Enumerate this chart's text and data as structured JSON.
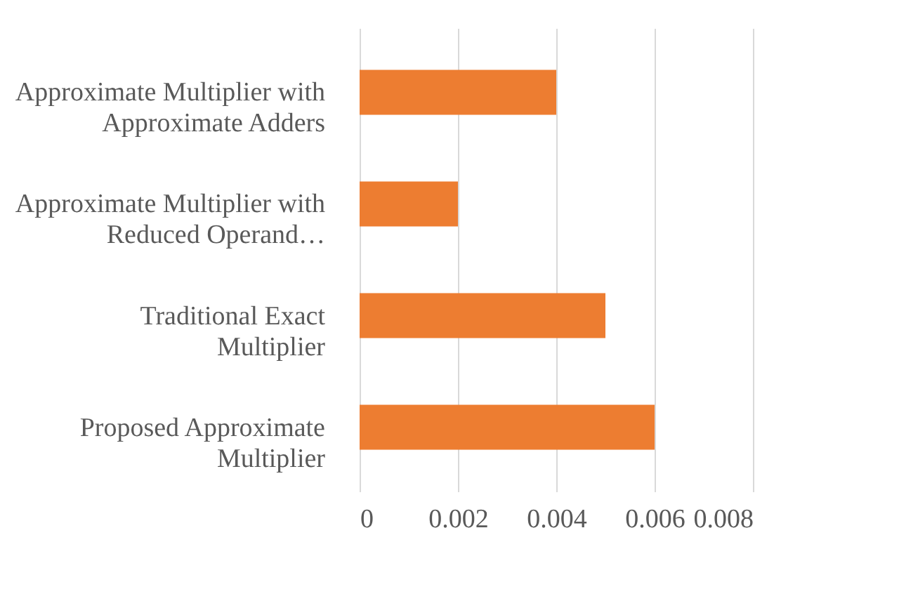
{
  "chart_data": {
    "type": "bar",
    "orientation": "horizontal",
    "categories": [
      "Approximate Multiplier with Approximate Adders",
      "Approximate Multiplier with Reduced Operand…",
      "Traditional Exact Multiplier",
      "Proposed Approximate Multiplier"
    ],
    "values": [
      0.004,
      0.002,
      0.005,
      0.006
    ],
    "color": "#ed7d31",
    "xlim": [
      0,
      0.008
    ],
    "xticks": [
      0,
      0.002,
      0.004,
      0.006,
      0.008
    ],
    "grid": "x"
  }
}
